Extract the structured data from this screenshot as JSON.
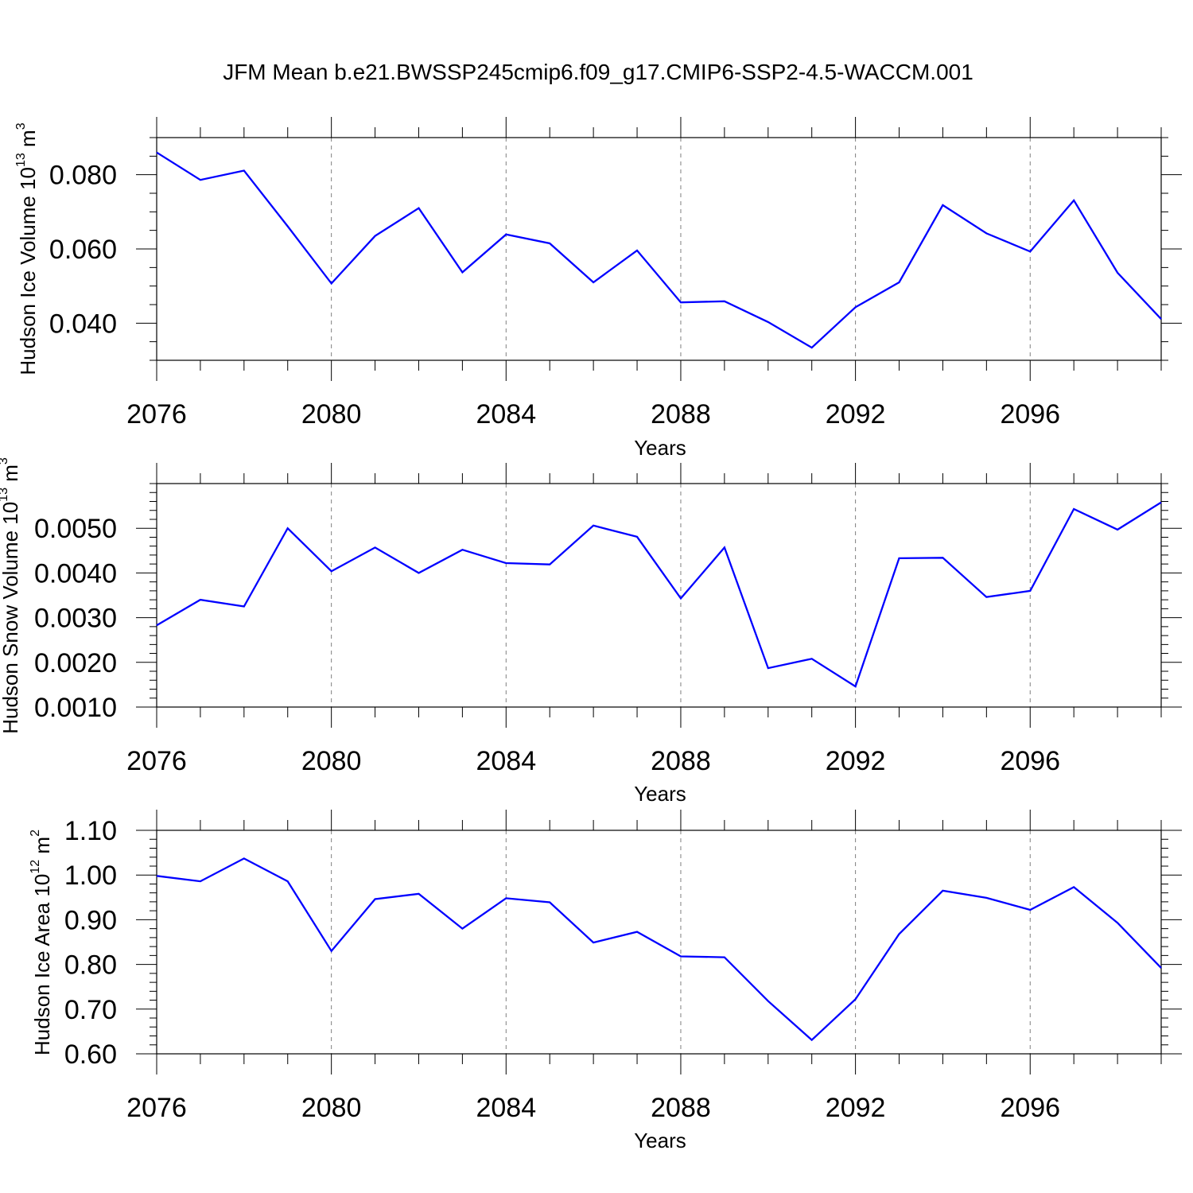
{
  "title": "JFM Mean b.e21.BWSSP245cmip6.f09_g17.CMIP6-SSP2-4.5-WACCM.001",
  "colors": {
    "line": "#0000ff",
    "axis": "#000000",
    "grid": "#7f7f7f"
  },
  "chart_data": [
    {
      "type": "line",
      "ylabel_text": "Hudson Ice Volume 10",
      "ylabel_exp": "13",
      "ylabel_unit": " m",
      "ylabel_unit_exp": "3",
      "xlabel": "Years",
      "xlim": [
        2076,
        2099
      ],
      "ylim": [
        0.03,
        0.09
      ],
      "yticks": [
        0.04,
        0.06,
        0.08
      ],
      "ytick_labels": [
        "0.040",
        "0.060",
        "0.080"
      ],
      "ytick_minor_step": 0.005,
      "xticks": [
        2076,
        2080,
        2084,
        2088,
        2092,
        2096
      ],
      "xtick_labels": [
        "2076",
        "2080",
        "2084",
        "2088",
        "2092",
        "2096"
      ],
      "grid": "vertical dashed at major x ticks",
      "x": [
        2076,
        2077,
        2078,
        2079,
        2080,
        2081,
        2082,
        2083,
        2084,
        2085,
        2086,
        2087,
        2088,
        2089,
        2090,
        2091,
        2092,
        2093,
        2094,
        2095,
        2096,
        2097,
        2098,
        2099
      ],
      "series": [
        {
          "values": [
            0.086,
            0.0786,
            0.0811,
            0.0661,
            0.0507,
            0.0635,
            0.071,
            0.0537,
            0.0639,
            0.0615,
            0.051,
            0.0596,
            0.0456,
            0.0459,
            0.0403,
            0.0334,
            0.0443,
            0.051,
            0.0718,
            0.0642,
            0.0593,
            0.0731,
            0.0536,
            0.0411
          ]
        }
      ]
    },
    {
      "type": "line",
      "ylabel_text": "Hudson Snow Volume 10",
      "ylabel_exp": "13",
      "ylabel_unit": " m",
      "ylabel_unit_exp": "3",
      "xlabel": "Years",
      "xlim": [
        2076,
        2099
      ],
      "ylim": [
        0.001,
        0.006
      ],
      "yticks": [
        0.001,
        0.002,
        0.003,
        0.004,
        0.005
      ],
      "ytick_labels": [
        "0.0010",
        "0.0020",
        "0.0030",
        "0.0040",
        "0.0050"
      ],
      "ytick_minor_step": 0.0002,
      "xticks": [
        2076,
        2080,
        2084,
        2088,
        2092,
        2096
      ],
      "xtick_labels": [
        "2076",
        "2080",
        "2084",
        "2088",
        "2092",
        "2096"
      ],
      "grid": "vertical dashed at major x ticks",
      "x": [
        2076,
        2077,
        2078,
        2079,
        2080,
        2081,
        2082,
        2083,
        2084,
        2085,
        2086,
        2087,
        2088,
        2089,
        2090,
        2091,
        2092,
        2093,
        2094,
        2095,
        2096,
        2097,
        2098,
        2099
      ],
      "series": [
        {
          "values": [
            0.00283,
            0.0034,
            0.00325,
            0.005,
            0.00404,
            0.00457,
            0.004,
            0.00452,
            0.00422,
            0.00419,
            0.00506,
            0.00481,
            0.00343,
            0.00457,
            0.00187,
            0.00208,
            0.00146,
            0.00433,
            0.00434,
            0.00346,
            0.0036,
            0.00543,
            0.00497,
            0.00558
          ]
        }
      ]
    },
    {
      "type": "line",
      "ylabel_text": "Hudson Ice Area 10",
      "ylabel_exp": "12",
      "ylabel_unit": " m",
      "ylabel_unit_exp": "2",
      "xlabel": "Years",
      "xlim": [
        2076,
        2099
      ],
      "ylim": [
        0.6,
        1.1
      ],
      "yticks": [
        0.6,
        0.7,
        0.8,
        0.9,
        1.0,
        1.1
      ],
      "ytick_labels": [
        "0.60",
        "0.70",
        "0.80",
        "0.90",
        "1.00",
        "1.10"
      ],
      "ytick_minor_step": 0.02,
      "xticks": [
        2076,
        2080,
        2084,
        2088,
        2092,
        2096
      ],
      "xtick_labels": [
        "2076",
        "2080",
        "2084",
        "2088",
        "2092",
        "2096"
      ],
      "grid": "vertical dashed at major x ticks",
      "x": [
        2076,
        2077,
        2078,
        2079,
        2080,
        2081,
        2082,
        2083,
        2084,
        2085,
        2086,
        2087,
        2088,
        2089,
        2090,
        2091,
        2092,
        2093,
        2094,
        2095,
        2096,
        2097,
        2098,
        2099
      ],
      "series": [
        {
          "values": [
            0.998,
            0.986,
            1.037,
            0.986,
            0.83,
            0.946,
            0.958,
            0.88,
            0.948,
            0.939,
            0.849,
            0.873,
            0.818,
            0.816,
            0.718,
            0.631,
            0.722,
            0.868,
            0.965,
            0.949,
            0.922,
            0.973,
            0.893,
            0.792
          ]
        }
      ]
    }
  ]
}
